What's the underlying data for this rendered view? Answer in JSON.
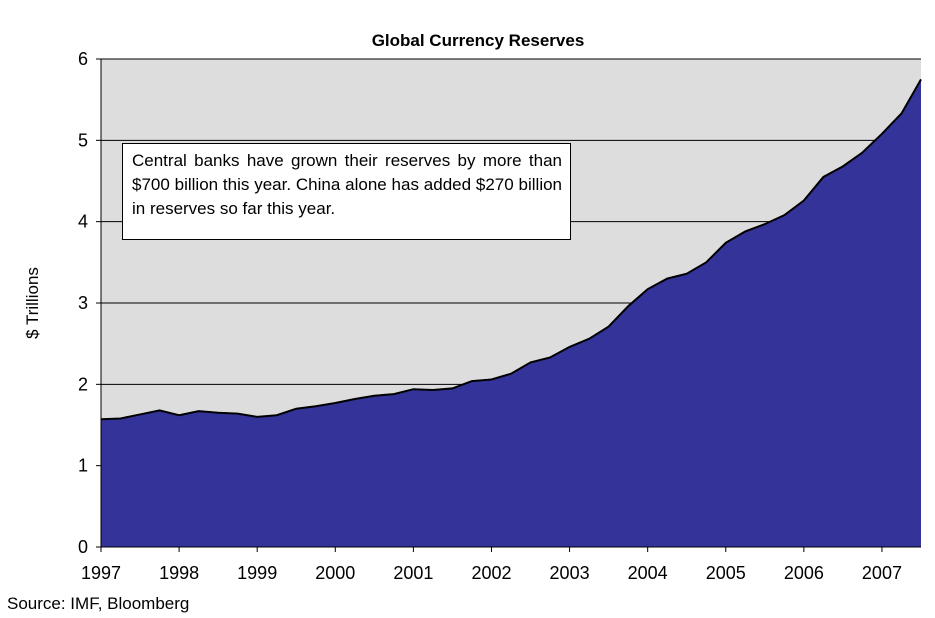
{
  "chart_data": {
    "type": "area",
    "title": "Global Currency Reserves",
    "xlabel": "",
    "ylabel": "$ Trillions",
    "ylim": [
      0,
      6
    ],
    "yticks": [
      "0",
      "1",
      "2",
      "3",
      "4",
      "5",
      "6"
    ],
    "xticks": [
      "1997",
      "1998",
      "1999",
      "2000",
      "2001",
      "2002",
      "2003",
      "2004",
      "2005",
      "2006",
      "2007"
    ],
    "grid": "horizontal",
    "legend": "none",
    "annotation": "Central banks have grown their reserves by more than $700 billion this year.   China alone has added $270 billion in reserves so far this year.",
    "source": "Source: IMF, Bloomberg",
    "colors": {
      "plot_background": "#DDDDDD",
      "area_fill": "#333399",
      "area_line": "#000000",
      "gridline": "#000000"
    },
    "series": [
      {
        "x": [
          1997.0,
          1997.25,
          1997.5,
          1997.75,
          1998.0,
          1998.25,
          1998.5,
          1998.75,
          1999.0,
          1999.25,
          1999.5,
          1999.75,
          2000.0,
          2000.25,
          2000.5,
          2000.75,
          2001.0,
          2001.25,
          2001.5,
          2001.75,
          2002.0,
          2002.25,
          2002.5,
          2002.75,
          2003.0,
          2003.25,
          2003.5,
          2003.75,
          2004.0,
          2004.25,
          2004.5,
          2004.75,
          2005.0,
          2005.25,
          2005.5,
          2005.75,
          2006.0,
          2006.25,
          2006.5,
          2006.75,
          2007.0,
          2007.25,
          2007.5
        ],
        "values": [
          1.57,
          1.58,
          1.63,
          1.68,
          1.62,
          1.67,
          1.65,
          1.64,
          1.6,
          1.62,
          1.7,
          1.73,
          1.77,
          1.82,
          1.86,
          1.88,
          1.94,
          1.93,
          1.95,
          2.04,
          2.06,
          2.13,
          2.27,
          2.33,
          2.46,
          2.56,
          2.71,
          2.96,
          3.17,
          3.3,
          3.36,
          3.5,
          3.74,
          3.88,
          3.97,
          4.08,
          4.26,
          4.55,
          4.68,
          4.85,
          5.08,
          5.33,
          5.75
        ]
      }
    ]
  }
}
